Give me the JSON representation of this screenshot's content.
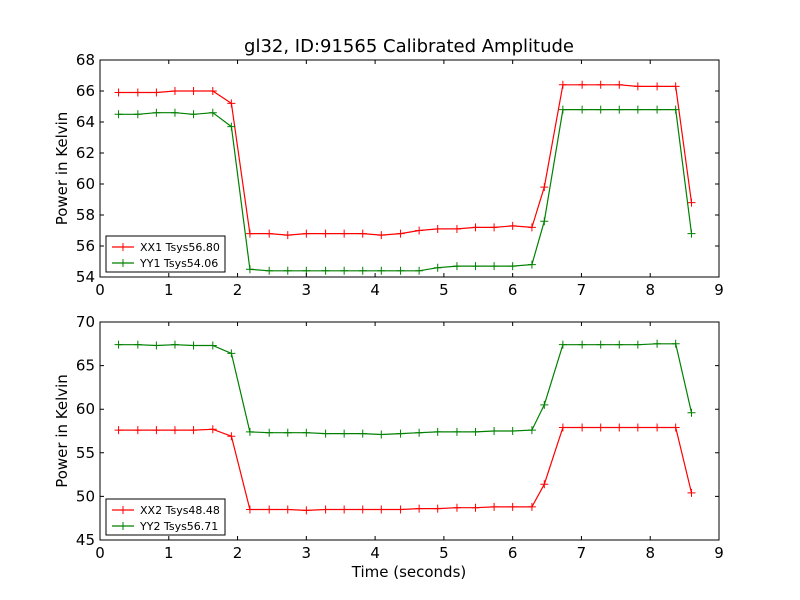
{
  "chart_data": [
    {
      "type": "line",
      "title": "gl32, ID:91565 Calibrated Amplitude",
      "xlabel": "",
      "ylabel": "Power in Kelvin",
      "xlim": [
        0,
        9
      ],
      "ylim": [
        54,
        68
      ],
      "xticks": [
        0,
        1,
        2,
        3,
        4,
        5,
        6,
        7,
        8,
        9
      ],
      "yticks": [
        54,
        56,
        58,
        60,
        62,
        64,
        66,
        68
      ],
      "legend": "lower-left",
      "grid": false,
      "x": [
        0.27,
        0.55,
        0.82,
        1.09,
        1.36,
        1.64,
        1.91,
        2.18,
        2.46,
        2.73,
        3.0,
        3.28,
        3.55,
        3.82,
        4.09,
        4.37,
        4.64,
        4.91,
        5.19,
        5.46,
        5.73,
        6.0,
        6.28,
        6.46,
        6.73,
        7.01,
        7.28,
        7.55,
        7.82,
        8.1,
        8.37,
        8.6
      ],
      "series": [
        {
          "name": "XX1 Tsys56.80",
          "color": "#ff0000",
          "values": [
            65.9,
            65.9,
            65.9,
            66.0,
            66.0,
            66.0,
            65.2,
            56.8,
            56.8,
            56.7,
            56.8,
            56.8,
            56.8,
            56.8,
            56.7,
            56.8,
            57.0,
            57.1,
            57.1,
            57.2,
            57.2,
            57.3,
            57.2,
            59.8,
            66.4,
            66.4,
            66.4,
            66.4,
            66.3,
            66.3,
            66.3,
            58.8
          ]
        },
        {
          "name": "YY1 Tsys54.06",
          "color": "#008000",
          "values": [
            64.5,
            64.5,
            64.6,
            64.6,
            64.5,
            64.6,
            63.7,
            54.5,
            54.4,
            54.4,
            54.4,
            54.4,
            54.4,
            54.4,
            54.4,
            54.4,
            54.4,
            54.6,
            54.7,
            54.7,
            54.7,
            54.7,
            54.8,
            57.6,
            64.8,
            64.8,
            64.8,
            64.8,
            64.8,
            64.8,
            64.8,
            56.8
          ]
        }
      ]
    },
    {
      "type": "line",
      "title": "",
      "xlabel": "Time (seconds)",
      "ylabel": "Power in Kelvin",
      "xlim": [
        0,
        9
      ],
      "ylim": [
        45,
        70
      ],
      "xticks": [
        0,
        1,
        2,
        3,
        4,
        5,
        6,
        7,
        8,
        9
      ],
      "yticks": [
        45,
        50,
        55,
        60,
        65,
        70
      ],
      "legend": "lower-left",
      "grid": false,
      "x": [
        0.27,
        0.55,
        0.82,
        1.09,
        1.36,
        1.64,
        1.91,
        2.18,
        2.46,
        2.73,
        3.0,
        3.28,
        3.55,
        3.82,
        4.09,
        4.37,
        4.64,
        4.91,
        5.19,
        5.46,
        5.73,
        6.0,
        6.28,
        6.46,
        6.73,
        7.01,
        7.28,
        7.55,
        7.82,
        8.1,
        8.37,
        8.6
      ],
      "series": [
        {
          "name": "XX2 Tsys48.48",
          "color": "#ff0000",
          "values": [
            57.6,
            57.6,
            57.6,
            57.6,
            57.6,
            57.7,
            56.9,
            48.5,
            48.5,
            48.5,
            48.4,
            48.5,
            48.5,
            48.5,
            48.5,
            48.5,
            48.6,
            48.6,
            48.7,
            48.7,
            48.8,
            48.8,
            48.8,
            51.4,
            57.9,
            57.9,
            57.9,
            57.9,
            57.9,
            57.9,
            57.9,
            50.4
          ]
        },
        {
          "name": "YY2 Tsys56.71",
          "color": "#008000",
          "values": [
            67.4,
            67.4,
            67.3,
            67.4,
            67.3,
            67.3,
            66.4,
            57.4,
            57.3,
            57.3,
            57.3,
            57.2,
            57.2,
            57.2,
            57.1,
            57.2,
            57.3,
            57.4,
            57.4,
            57.4,
            57.5,
            57.5,
            57.6,
            60.5,
            67.4,
            67.4,
            67.4,
            67.4,
            67.4,
            67.5,
            67.5,
            59.6
          ]
        }
      ]
    }
  ]
}
